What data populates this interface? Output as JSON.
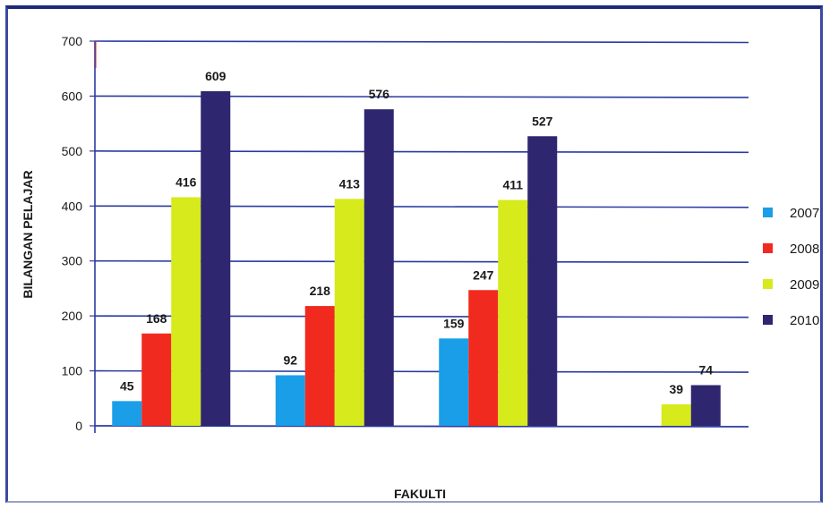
{
  "chart_data": {
    "type": "bar",
    "categories": [
      "",
      "",
      "",
      ""
    ],
    "series": [
      {
        "name": "2007",
        "color": "#1a9ee8",
        "values": [
          45,
          92,
          159,
          null
        ]
      },
      {
        "name": "2008",
        "color": "#f02a1e",
        "values": [
          168,
          218,
          247,
          null
        ]
      },
      {
        "name": "2009",
        "color": "#d6ea1c",
        "values": [
          416,
          413,
          411,
          39
        ]
      },
      {
        "name": "2010",
        "color": "#2f2670",
        "values": [
          609,
          576,
          527,
          74
        ]
      }
    ],
    "title": "",
    "xlabel": "FAKULTI",
    "ylabel": "BILANGAN PELAJAR",
    "ylim": [
      0,
      700
    ],
    "yticks": [
      0,
      100,
      200,
      300,
      400,
      500,
      600,
      700
    ],
    "grid": true,
    "legend_position": "right",
    "gridline_color": "#2b3aa0",
    "axis_color": "#2b3aa0"
  }
}
